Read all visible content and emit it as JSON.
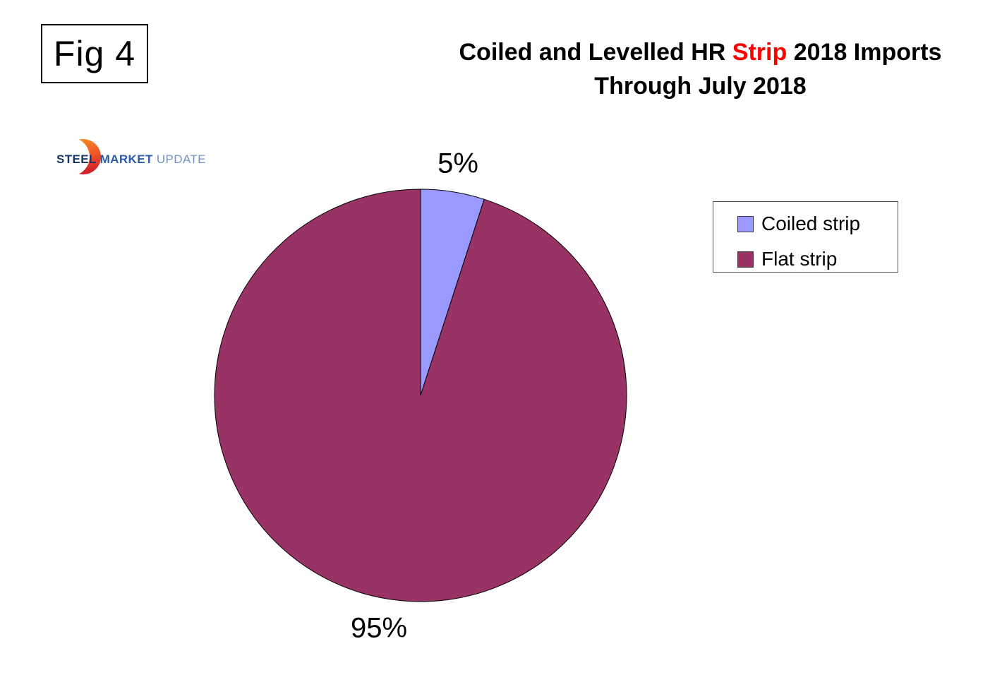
{
  "figure": {
    "label": "Fig 4"
  },
  "header": {
    "title_pre": "Coiled and Levelled HR",
    "title_highlight": " Strip",
    "title_post": " 2018 Imports",
    "title_line2": "Through July 2018",
    "highlight_color": "#FF0000"
  },
  "logo": {
    "word1": "STEEL",
    "word2": " MARKET",
    "word3": " UPDATE",
    "word1_color": "#16356B",
    "word2_color": "#2B5CA8",
    "word3_color": "#7490C4",
    "crescent_gradient": [
      "#F79521",
      "#F15A29",
      "#D2232A"
    ]
  },
  "chart_data": {
    "type": "pie",
    "title": "Coiled and Levelled HR Strip 2018 Imports Through July 2018",
    "categories": [
      "Coiled strip",
      "Flat strip"
    ],
    "values": [
      5,
      95
    ],
    "unit": "percent",
    "start_angle_deg_from_12_oclock": 0,
    "direction": "clockwise",
    "legend_position": "right",
    "outline_color": "#000000",
    "slices": [
      {
        "label": "Coiled strip",
        "value": 5,
        "pct_label": "5%",
        "color": "#9999FF"
      },
      {
        "label": "Flat strip",
        "value": 95,
        "pct_label": "95%",
        "color": "#993366"
      }
    ]
  }
}
